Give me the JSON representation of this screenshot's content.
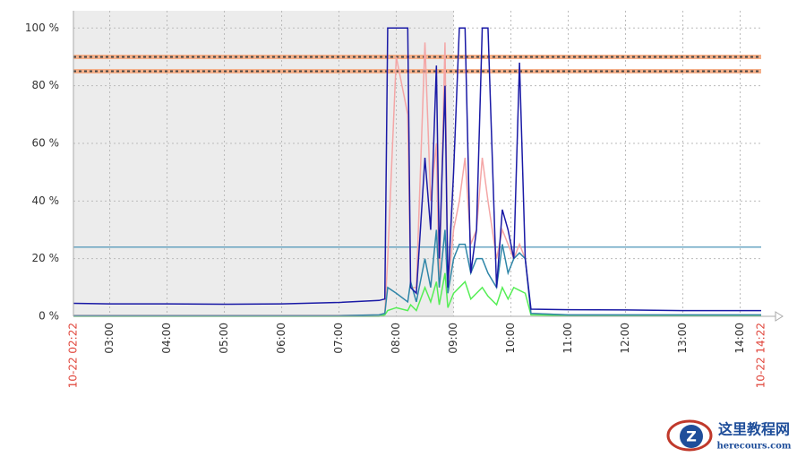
{
  "chart_data": {
    "type": "line",
    "x": [
      2.3667,
      3,
      4,
      5,
      6,
      7,
      7.7,
      7.8,
      7.85,
      8.0,
      8.2,
      8.25,
      8.35,
      8.5,
      8.6,
      8.7,
      8.75,
      8.85,
      8.9,
      9.0,
      9.1,
      9.2,
      9.3,
      9.4,
      9.5,
      9.6,
      9.75,
      9.85,
      9.95,
      10.05,
      10.15,
      10.25,
      10.35,
      11,
      12,
      13,
      14.3667
    ],
    "series": [
      {
        "color": "#f4a6a6",
        "values": [
          0.3,
          0.3,
          0.3,
          0.3,
          0.3,
          0.3,
          0.5,
          1,
          20,
          90,
          70,
          10,
          10,
          95,
          40,
          60,
          10,
          95,
          10,
          30,
          40,
          55,
          25,
          30,
          55,
          40,
          20,
          30,
          25,
          20,
          25,
          20,
          1,
          0.5,
          0.5,
          0.5,
          0.5
        ]
      },
      {
        "color": "#55ee55",
        "values": [
          0,
          0,
          0,
          0,
          0,
          0,
          0,
          0.5,
          2,
          3,
          2,
          4,
          2,
          10,
          5,
          12,
          4,
          15,
          3,
          8,
          10,
          12,
          6,
          8,
          10,
          7,
          4,
          10,
          6,
          10,
          9,
          8,
          0.5,
          0.3,
          0.3,
          0.3,
          0.3
        ]
      },
      {
        "color": "#2f86a8",
        "values": [
          0.2,
          0.2,
          0.2,
          0.2,
          0.2,
          0.2,
          0.5,
          1,
          10,
          8,
          5,
          12,
          5,
          20,
          10,
          30,
          10,
          30,
          8,
          20,
          25,
          25,
          15,
          20,
          20,
          15,
          10,
          25,
          15,
          20,
          22,
          20,
          1,
          0.5,
          0.5,
          0.5,
          0.5
        ]
      },
      {
        "color": "#1a1aa6",
        "values": [
          4.5,
          4.3,
          4.3,
          4.2,
          4.3,
          4.8,
          5.5,
          6,
          100,
          100,
          100,
          10,
          8,
          55,
          30,
          87,
          20,
          80,
          10,
          50,
          100,
          100,
          15,
          30,
          100,
          100,
          10,
          37,
          30,
          20,
          88,
          20,
          2.5,
          2.3,
          2.2,
          2,
          2
        ]
      }
    ],
    "reference_lines": [
      {
        "value": 90,
        "color": "#f5b08a",
        "line_color": "#444444"
      },
      {
        "value": 85,
        "color": "#f5b08a",
        "line_color": "#444444"
      },
      {
        "value": 24,
        "color": "#3a8ab0"
      }
    ],
    "shaded_range": [
      2.3667,
      9.0
    ],
    "xlim": [
      2.3667,
      14.3667
    ],
    "ylim": [
      0,
      106
    ],
    "yticks": [
      {
        "value": 0,
        "label": "0 %"
      },
      {
        "value": 20,
        "label": "20 %"
      },
      {
        "value": 40,
        "label": "40 %"
      },
      {
        "value": 60,
        "label": "60 %"
      },
      {
        "value": 80,
        "label": "80 %"
      },
      {
        "value": 100,
        "label": "100 %"
      }
    ],
    "xticks": [
      {
        "value": 3,
        "label": "03:00"
      },
      {
        "value": 4,
        "label": "04:00"
      },
      {
        "value": 5,
        "label": "05:00"
      },
      {
        "value": 6,
        "label": "06:00"
      },
      {
        "value": 7,
        "label": "07:00"
      },
      {
        "value": 8,
        "label": "08:00"
      },
      {
        "value": 9,
        "label": "09:00"
      },
      {
        "value": 10,
        "label": "10:00"
      },
      {
        "value": 11,
        "label": "11:00"
      },
      {
        "value": 12,
        "label": "12:00"
      },
      {
        "value": 13,
        "label": "13:00"
      },
      {
        "value": 14,
        "label": "14:00"
      }
    ],
    "end_ticks": [
      {
        "value": 2.3667,
        "label": "10-22 02:22"
      },
      {
        "value": 14.3667,
        "label": "10-22 14:22"
      }
    ],
    "grid": true
  },
  "watermark": {
    "title": "这里教程网",
    "url": "herecours.com"
  }
}
